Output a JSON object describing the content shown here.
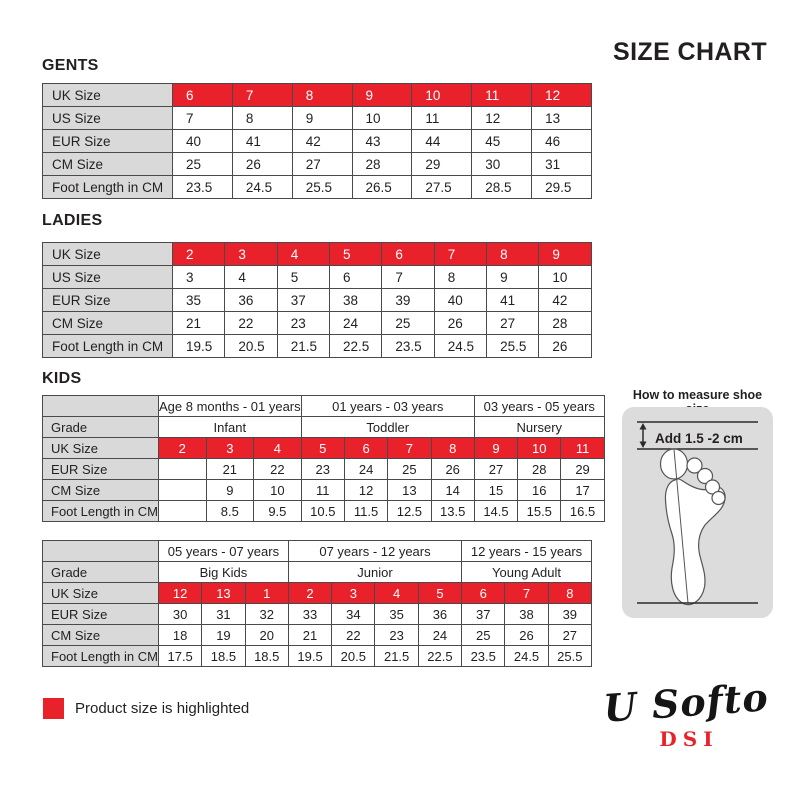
{
  "page": {
    "title": "SIZE CHART"
  },
  "sections": {
    "gents": "GENTS",
    "ladies": "LADIES",
    "kids": "KIDS"
  },
  "colors": {
    "highlight_red": "#e8212b",
    "label_gray": "#d9d9d9",
    "panel_gray": "#dcdcdc",
    "border": "#4a4a4a",
    "text": "#231f20",
    "highlight_text": "#ffffff"
  },
  "tables": {
    "gents": {
      "rows": [
        {
          "label": "UK Size",
          "highlight": true,
          "cells": [
            "6",
            "7",
            "8",
            "9",
            "10",
            "11",
            "12"
          ]
        },
        {
          "label": "US Size",
          "cells": [
            "7",
            "8",
            "9",
            "10",
            "11",
            "12",
            "13"
          ]
        },
        {
          "label": "EUR Size",
          "cells": [
            "40",
            "41",
            "42",
            "43",
            "44",
            "45",
            "46"
          ]
        },
        {
          "label": "CM Size",
          "cells": [
            "25",
            "26",
            "27",
            "28",
            "29",
            "30",
            "31"
          ]
        },
        {
          "label": "Foot Length in CM",
          "cells": [
            "23.5",
            "24.5",
            "25.5",
            "26.5",
            "27.5",
            "28.5",
            "29.5"
          ]
        }
      ]
    },
    "ladies": {
      "rows": [
        {
          "label": "UK Size",
          "highlight": true,
          "cells": [
            "2",
            "3",
            "4",
            "5",
            "6",
            "7",
            "8",
            "9"
          ]
        },
        {
          "label": "US Size",
          "cells": [
            "3",
            "4",
            "5",
            "6",
            "7",
            "8",
            "9",
            "10"
          ]
        },
        {
          "label": "EUR Size",
          "cells": [
            "35",
            "36",
            "37",
            "38",
            "39",
            "40",
            "41",
            "42"
          ]
        },
        {
          "label": "CM Size",
          "cells": [
            "21",
            "22",
            "23",
            "24",
            "25",
            "26",
            "27",
            "28"
          ]
        },
        {
          "label": "Foot Length in CM",
          "cells": [
            "19.5",
            "20.5",
            "21.5",
            "22.5",
            "23.5",
            "24.5",
            "25.5",
            "26"
          ]
        }
      ]
    },
    "kids_younger": {
      "group_rows": [
        {
          "label": "",
          "cells": [
            {
              "text": "Age 8 months - 01 years",
              "span": 3
            },
            {
              "text": "01 years - 03 years",
              "span": 4
            },
            {
              "text": "03 years - 05 years",
              "span": 3
            }
          ]
        },
        {
          "label": "Grade",
          "cells": [
            {
              "text": "Infant",
              "span": 3
            },
            {
              "text": "Toddler",
              "span": 4
            },
            {
              "text": "Nursery",
              "span": 3
            }
          ]
        }
      ],
      "rows": [
        {
          "label": "UK Size",
          "highlight": true,
          "cells": [
            "2",
            "3",
            "4",
            "5",
            "6",
            "7",
            "8",
            "9",
            "10",
            "11"
          ]
        },
        {
          "label": "EUR Size",
          "cells": [
            "",
            "21",
            "22",
            "23",
            "24",
            "25",
            "26",
            "27",
            "28",
            "29"
          ]
        },
        {
          "label": "CM Size",
          "cells": [
            "",
            "9",
            "10",
            "11",
            "12",
            "13",
            "14",
            "15",
            "16",
            "17"
          ]
        },
        {
          "label": "Foot Length in CM",
          "cells": [
            "",
            "8.5",
            "9.5",
            "10.5",
            "11.5",
            "12.5",
            "13.5",
            "14.5",
            "15.5",
            "16.5"
          ]
        }
      ]
    },
    "kids_older": {
      "group_rows": [
        {
          "label": "",
          "cells": [
            {
              "text": "05 years - 07 years",
              "span": 3
            },
            {
              "text": "07 years - 12 years",
              "span": 4
            },
            {
              "text": "12 years - 15 years",
              "span": 3
            }
          ]
        },
        {
          "label": "Grade",
          "cells": [
            {
              "text": "Big Kids",
              "span": 3
            },
            {
              "text": "Junior",
              "span": 4
            },
            {
              "text": "Young Adult",
              "span": 3
            }
          ]
        }
      ],
      "rows": [
        {
          "label": "UK Size",
          "highlight": true,
          "cells": [
            "12",
            "13",
            "1",
            "2",
            "3",
            "4",
            "5",
            "6",
            "7",
            "8"
          ]
        },
        {
          "label": "EUR Size",
          "cells": [
            "30",
            "31",
            "32",
            "33",
            "34",
            "35",
            "36",
            "37",
            "38",
            "39"
          ]
        },
        {
          "label": "CM Size",
          "cells": [
            "18",
            "19",
            "20",
            "21",
            "22",
            "23",
            "24",
            "25",
            "26",
            "27"
          ]
        },
        {
          "label": "Foot Length in CM",
          "cells": [
            "17.5",
            "18.5",
            "18.5",
            "19.5",
            "20.5",
            "21.5",
            "22.5",
            "23.5",
            "24.5",
            "25.5"
          ]
        }
      ]
    }
  },
  "measure_panel": {
    "title": "How to measure shoe size",
    "note": "Add 1.5 -2 cm"
  },
  "legend": {
    "label": "Product size is highlighted"
  },
  "brand": {
    "name": "U Softo",
    "sub": "DSI"
  }
}
